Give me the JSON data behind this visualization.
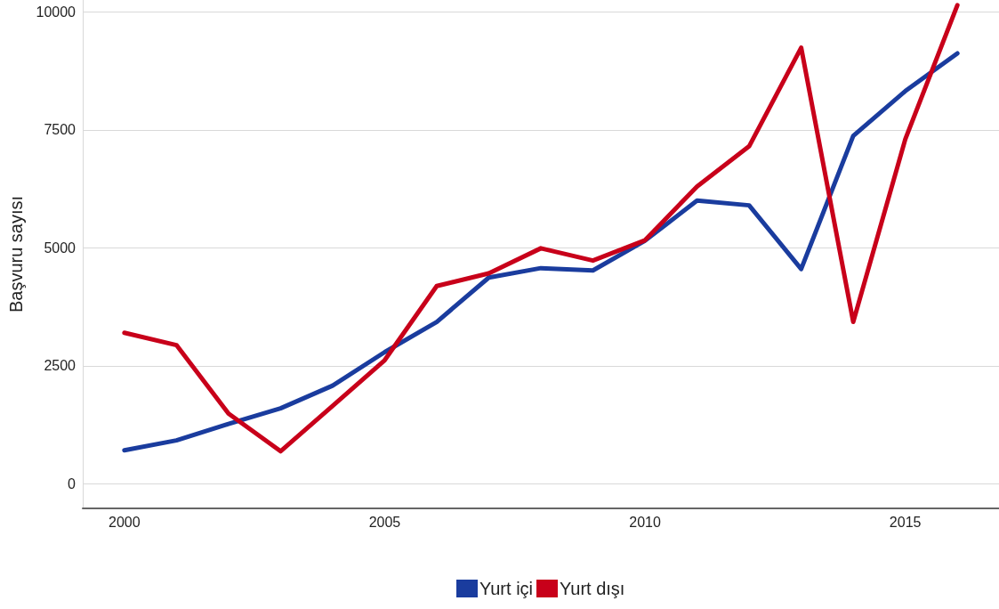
{
  "chart_data": {
    "type": "line",
    "ylabel": "Başvuru sayısı",
    "x": [
      2000,
      2001,
      2002,
      2003,
      2004,
      2005,
      2006,
      2007,
      2008,
      2009,
      2010,
      2011,
      2012,
      2013,
      2014,
      2015,
      2016
    ],
    "series": [
      {
        "name": "Yurt içi",
        "color": "#1a3c9e",
        "values": [
          710,
          920,
          1270,
          1600,
          2080,
          2790,
          3430,
          4370,
          4570,
          4520,
          5150,
          6000,
          5900,
          4550,
          7370,
          8320,
          9120
        ]
      },
      {
        "name": "Yurt dışı",
        "color": "#c8001a",
        "values": [
          3200,
          2940,
          1490,
          690,
          1650,
          2620,
          4190,
          4460,
          4990,
          4730,
          5160,
          6300,
          7150,
          9240,
          3430,
          7300,
          10140
        ]
      }
    ],
    "xlim": [
      1999.2,
      2016.8
    ],
    "xticks": [
      2000,
      2005,
      2010,
      2015
    ],
    "ylim": [
      -520,
      10250
    ],
    "yticks": [
      0,
      2500,
      5000,
      7500,
      10000
    ],
    "grid": "y",
    "legend": "bottom",
    "marker": "none",
    "line_style": "solid"
  }
}
